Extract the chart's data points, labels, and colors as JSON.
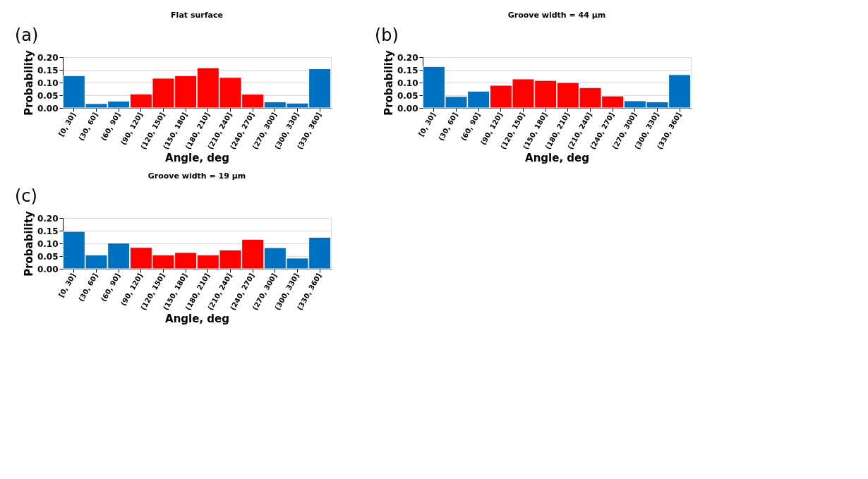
{
  "chart_data": [
    {
      "type": "bar",
      "title": "Flat surface",
      "annotations": [
        "(a)"
      ],
      "xlabel": "Angle, deg",
      "ylabel": "Probability",
      "categories": [
        "[0, 30]",
        "(30, 60]",
        "(60, 90]",
        "(90, 120]",
        "(120, 150]",
        "(150, 180]",
        "(180, 210]",
        "(210, 240]",
        "(240, 270]",
        "(270, 300]",
        "(300, 330]",
        "(330, 360]"
      ],
      "values": [
        0.127,
        0.017,
        0.027,
        0.055,
        0.117,
        0.127,
        0.158,
        0.12,
        0.054,
        0.024,
        0.019,
        0.154
      ],
      "colors": [
        "#0070c0",
        "#0070c0",
        "#0070c0",
        "#ff0000",
        "#ff0000",
        "#ff0000",
        "#ff0000",
        "#ff0000",
        "#ff0000",
        "#0070c0",
        "#0070c0",
        "#0070c0"
      ],
      "ylim": [
        0,
        0.2
      ],
      "yticks": [
        {
          "value": 0,
          "label": "0.00"
        },
        {
          "value": 0.05,
          "label": "0.05"
        },
        {
          "value": 0.1,
          "label": "0.10"
        },
        {
          "value": 0.15,
          "label": "0.15"
        },
        {
          "value": 0.2,
          "label": "0.20"
        }
      ],
      "grid": "y"
    },
    {
      "type": "bar",
      "title": "Groove width = 44 µm",
      "annotations": [
        "(b)"
      ],
      "xlabel": "Angle, deg",
      "ylabel": "Probability",
      "categories": [
        "[0, 30]",
        "(30, 60]",
        "(60, 90]",
        "(90, 120]",
        "(120, 150]",
        "(150, 180]",
        "(180, 210]",
        "(210, 240]",
        "(240, 270]",
        "(270, 300]",
        "(300, 330]",
        "(330, 360]"
      ],
      "values": [
        0.163,
        0.045,
        0.066,
        0.089,
        0.114,
        0.108,
        0.1,
        0.08,
        0.047,
        0.028,
        0.024,
        0.131
      ],
      "colors": [
        "#0070c0",
        "#0070c0",
        "#0070c0",
        "#ff0000",
        "#ff0000",
        "#ff0000",
        "#ff0000",
        "#ff0000",
        "#ff0000",
        "#0070c0",
        "#0070c0",
        "#0070c0"
      ],
      "ylim": [
        0,
        0.2
      ],
      "yticks": [
        {
          "value": 0,
          "label": "0.00"
        },
        {
          "value": 0.05,
          "label": "0.05"
        },
        {
          "value": 0.1,
          "label": "0.10"
        },
        {
          "value": 0.15,
          "label": "0.15"
        },
        {
          "value": 0.2,
          "label": "0.20"
        }
      ],
      "grid": "y"
    },
    {
      "type": "bar",
      "title": "Groove width = 19 µm",
      "annotations": [
        "(c)"
      ],
      "xlabel": "Angle, deg",
      "ylabel": "Probability",
      "categories": [
        "[0, 30]",
        "(30, 60]",
        "(60, 90]",
        "(90, 120]",
        "(120, 150]",
        "(150, 180]",
        "(180, 210]",
        "(210, 240]",
        "(240, 270]",
        "(270, 300]",
        "(300, 330]",
        "(330, 360]"
      ],
      "values": [
        0.147,
        0.054,
        0.101,
        0.084,
        0.054,
        0.064,
        0.054,
        0.074,
        0.116,
        0.083,
        0.042,
        0.124
      ],
      "colors": [
        "#0070c0",
        "#0070c0",
        "#0070c0",
        "#ff0000",
        "#ff0000",
        "#ff0000",
        "#ff0000",
        "#ff0000",
        "#ff0000",
        "#0070c0",
        "#0070c0",
        "#0070c0"
      ],
      "ylim": [
        0,
        0.2
      ],
      "yticks": [
        {
          "value": 0,
          "label": "0.00"
        },
        {
          "value": 0.05,
          "label": "0.05"
        },
        {
          "value": 0.1,
          "label": "0.10"
        },
        {
          "value": 0.15,
          "label": "0.15"
        },
        {
          "value": 0.2,
          "label": "0.20"
        }
      ],
      "grid": "y"
    }
  ]
}
